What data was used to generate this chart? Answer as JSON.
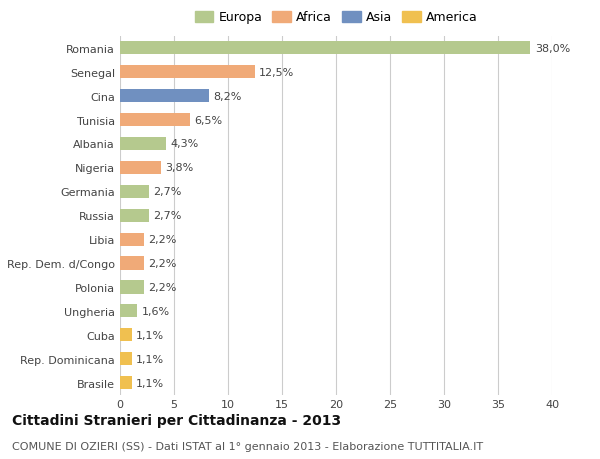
{
  "title": "Cittadini Stranieri per Cittadinanza - 2013",
  "subtitle": "COMUNE DI OZIERI (SS) - Dati ISTAT al 1° gennaio 2013 - Elaborazione TUTTITALIA.IT",
  "categories": [
    "Romania",
    "Senegal",
    "Cina",
    "Tunisia",
    "Albania",
    "Nigeria",
    "Germania",
    "Russia",
    "Libia",
    "Rep. Dem. d/Congo",
    "Polonia",
    "Ungheria",
    "Cuba",
    "Rep. Dominicana",
    "Brasile"
  ],
  "values": [
    38.0,
    12.5,
    8.2,
    6.5,
    4.3,
    3.8,
    2.7,
    2.7,
    2.2,
    2.2,
    2.2,
    1.6,
    1.1,
    1.1,
    1.1
  ],
  "labels": [
    "38,0%",
    "12,5%",
    "8,2%",
    "6,5%",
    "4,3%",
    "3,8%",
    "2,7%",
    "2,7%",
    "2,2%",
    "2,2%",
    "2,2%",
    "1,6%",
    "1,1%",
    "1,1%",
    "1,1%"
  ],
  "colors": [
    "#b5c98e",
    "#f0aa78",
    "#7090c0",
    "#f0aa78",
    "#b5c98e",
    "#f0aa78",
    "#b5c98e",
    "#b5c98e",
    "#f0aa78",
    "#f0aa78",
    "#b5c98e",
    "#b5c98e",
    "#f0c050",
    "#f0c050",
    "#f0c050"
  ],
  "legend_labels": [
    "Europa",
    "Africa",
    "Asia",
    "America"
  ],
  "legend_colors": [
    "#b5c98e",
    "#f0aa78",
    "#7090c0",
    "#f0c050"
  ],
  "xlim": [
    0,
    40
  ],
  "xticks": [
    0,
    5,
    10,
    15,
    20,
    25,
    30,
    35,
    40
  ],
  "background_color": "#ffffff",
  "grid_color": "#cccccc",
  "bar_height": 0.55,
  "title_fontsize": 10,
  "subtitle_fontsize": 8,
  "tick_fontsize": 8,
  "label_fontsize": 8
}
